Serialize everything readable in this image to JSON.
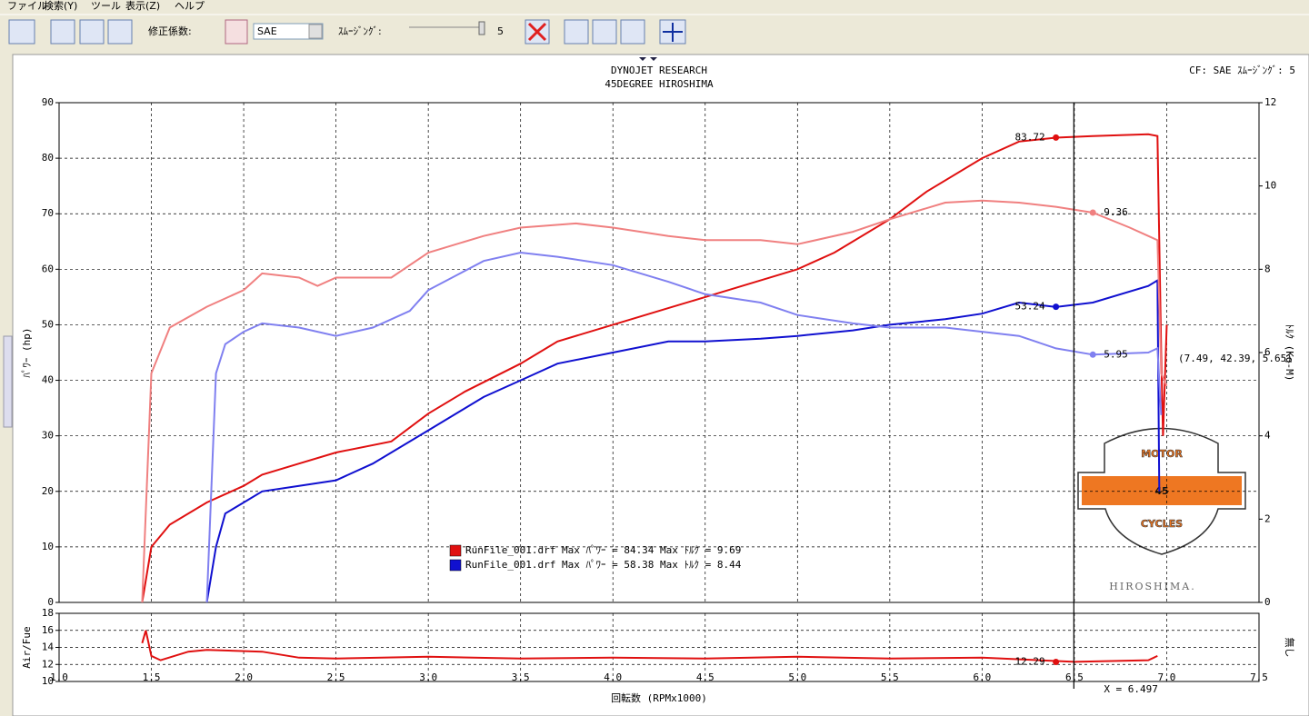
{
  "menu": [
    "ファイル",
    "検索(Y)",
    "ツール",
    "表示(Z)",
    "ヘルプ"
  ],
  "toolbar": {
    "correction_label": "修正係数:",
    "correction_value": "SAE",
    "smoothing_label": "ｽﾑｰｼﾞﾝｸﾞ:",
    "smoothing_value": "5"
  },
  "header": {
    "title": "DYNOJET  RESEARCH",
    "subtitle": "45DEGREE HIROSHIMA",
    "info": "CF: SAE  ｽﾑｰｼﾞﾝｸﾞ: 5"
  },
  "logo": {
    "top": "MOTOR",
    "middle": "45",
    "bottom": "CYCLES",
    "caption": "HIROSHIMA."
  },
  "chart_data": [
    {
      "type": "line",
      "ylabel": "ﾊﾟﾜｰ (hp)",
      "y2label": "ﾄﾙｸ (Kg-M)",
      "xlabel": "回転数 (RPMx1000)",
      "xlim": [
        1.0,
        7.5
      ],
      "xticks": [
        {
          "value": 1,
          "label": "1.0"
        },
        1.5,
        {
          "value": 2,
          "label": "2.0"
        },
        2.5,
        {
          "value": 3,
          "label": "3.0"
        },
        3.5,
        {
          "value": 4,
          "label": "4.0"
        },
        4.5,
        {
          "value": 5,
          "label": "5.0"
        },
        5.5,
        {
          "value": 6,
          "label": "6.0"
        },
        6.5,
        {
          "value": 7,
          "label": "7.0"
        },
        7.5
      ],
      "ylim": [
        0,
        90
      ],
      "yticks": [
        0,
        10,
        20,
        30,
        40,
        50,
        60,
        70,
        80,
        90
      ],
      "y2lim": [
        0,
        12
      ],
      "y2ticks": [
        0,
        2,
        4,
        6,
        8,
        10,
        12
      ],
      "grid": true,
      "series": [
        {
          "color": "#e01010",
          "x": [
            1.45,
            1.5,
            1.6,
            1.8,
            2.0,
            2.1,
            2.3,
            2.5,
            2.8,
            3.0,
            3.2,
            3.5,
            3.7,
            4.0,
            4.3,
            4.5,
            4.8,
            5.0,
            5.2,
            5.5,
            5.7,
            6.0,
            6.2,
            6.4,
            6.6,
            6.9,
            6.95,
            6.97,
            6.98,
            7.0
          ],
          "values": [
            0,
            10,
            14,
            18,
            21,
            23,
            25,
            27,
            29,
            34,
            38,
            43,
            47,
            50,
            53,
            55,
            58,
            60,
            63,
            69,
            74,
            80,
            83,
            83.7,
            84,
            84.3,
            84,
            45,
            30,
            50
          ]
        },
        {
          "color": "#1010d0",
          "x": [
            1.8,
            1.85,
            1.9,
            2.0,
            2.1,
            2.3,
            2.5,
            2.7,
            3.0,
            3.3,
            3.5,
            3.7,
            4.0,
            4.3,
            4.5,
            4.8,
            5.0,
            5.3,
            5.5,
            5.8,
            6.0,
            6.2,
            6.4,
            6.6,
            6.9,
            6.95,
            6.96
          ],
          "values": [
            0,
            10,
            16,
            18,
            20,
            21,
            22,
            25,
            31,
            37,
            40,
            43,
            45,
            47,
            47,
            47.5,
            48,
            49,
            50,
            51,
            52,
            54,
            53.2,
            54,
            57,
            58,
            20
          ]
        },
        {
          "color": "#f08080",
          "axis": "y2",
          "x": [
            1.45,
            1.5,
            1.6,
            1.8,
            2.0,
            2.1,
            2.3,
            2.4,
            2.5,
            2.8,
            3.0,
            3.3,
            3.5,
            3.8,
            4.0,
            4.3,
            4.5,
            4.8,
            5.0,
            5.3,
            5.5,
            5.8,
            6.0,
            6.2,
            6.4,
            6.6,
            6.8,
            6.95,
            6.97,
            7.0
          ],
          "values": [
            0,
            5.5,
            6.6,
            7.1,
            7.5,
            7.9,
            7.8,
            7.6,
            7.8,
            7.8,
            8.4,
            8.8,
            9.0,
            9.1,
            9.0,
            8.8,
            8.7,
            8.7,
            8.6,
            8.9,
            9.2,
            9.6,
            9.65,
            9.6,
            9.5,
            9.36,
            9.0,
            8.7,
            5.5,
            5.2
          ]
        },
        {
          "color": "#8080f0",
          "axis": "y2",
          "x": [
            1.8,
            1.85,
            1.9,
            2.0,
            2.1,
            2.3,
            2.5,
            2.7,
            2.9,
            3.0,
            3.3,
            3.5,
            3.7,
            4.0,
            4.3,
            4.5,
            4.8,
            5.0,
            5.3,
            5.5,
            5.8,
            6.0,
            6.2,
            6.4,
            6.6,
            6.9,
            6.95,
            6.97
          ],
          "values": [
            0,
            5.5,
            6.2,
            6.5,
            6.7,
            6.6,
            6.4,
            6.6,
            7.0,
            7.5,
            8.2,
            8.4,
            8.3,
            8.1,
            7.7,
            7.4,
            7.2,
            6.9,
            6.7,
            6.6,
            6.6,
            6.5,
            6.4,
            6.1,
            5.95,
            6.0,
            6.1,
            4.5
          ]
        }
      ],
      "legend": [
        {
          "text": "RunFile_001.drf Max ﾊﾟﾜｰ = 84.34  Max ﾄﾙｸ = 9.69",
          "color": "#e01010"
        },
        {
          "text": "RunFile_001.drf Max ﾊﾟﾜｰ = 58.38  Max ﾄﾙｸ = 8.44",
          "color": "#1010d0"
        }
      ],
      "annotations": [
        {
          "x": 6.4,
          "y": 83.72,
          "color": "#e01010"
        },
        {
          "x": 6.6,
          "y": 9.36,
          "axis": "y2",
          "color": "#f08080"
        },
        {
          "x": 6.4,
          "y": 53.24,
          "color": "#1010d0"
        },
        {
          "x": 6.6,
          "y": 5.95,
          "axis": "y2",
          "color": "#8080f0"
        }
      ],
      "point_readout": "(7.49, 42.39, 5.65)",
      "cursor": {
        "value": 6.497,
        "label": "X = 6.497"
      }
    },
    {
      "type": "line",
      "ylabel": "Air/Fue",
      "y2label": "無し",
      "ylim": [
        10,
        18
      ],
      "yticks": [
        10,
        12,
        14,
        16,
        18
      ],
      "series": [
        {
          "color": "#e01010",
          "x": [
            1.45,
            1.47,
            1.5,
            1.55,
            1.7,
            1.8,
            2.1,
            2.3,
            2.5,
            3.0,
            3.5,
            4.0,
            4.5,
            5.0,
            5.5,
            6.0,
            6.5,
            6.9,
            6.95
          ],
          "values": [
            14.5,
            16,
            13,
            12.5,
            13.5,
            13.7,
            13.5,
            12.8,
            12.7,
            12.9,
            12.7,
            12.8,
            12.7,
            12.9,
            12.7,
            12.8,
            12.3,
            12.5,
            13
          ]
        }
      ],
      "annotations": [
        {
          "x": 6.4,
          "y": 12.29,
          "color": "#e01010"
        }
      ]
    }
  ]
}
